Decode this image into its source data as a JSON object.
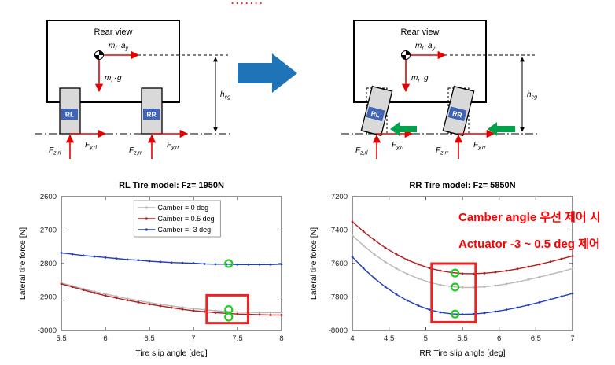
{
  "top_marker": {
    "text": "·······",
    "color": "#ff0000"
  },
  "annotation": {
    "line1": "Camber angle 우선 제어 시",
    "line2": "Actuator -3 ~ 0.5 deg 제어",
    "color": "#ff0000"
  },
  "rear_view": {
    "title": "Rear view",
    "wheel_rl": "RL",
    "wheel_rr": "RR",
    "m1": {
      "a": "m",
      "b": "r",
      "c": "·",
      "d": "a",
      "e": "y"
    },
    "m2": {
      "a": "m",
      "b": "r",
      "c": "·",
      "d": "g"
    },
    "h": {
      "a": "h",
      "b": "cg"
    },
    "f_z_rl": {
      "a": "F",
      "b": "z,rl"
    },
    "f_y_rl": {
      "a": "F",
      "b": "y,rl"
    },
    "f_z_rr": {
      "a": "F",
      "b": "z,rr"
    },
    "f_y_rr": {
      "a": "F",
      "b": "y,rr"
    }
  },
  "colors": {
    "force_red": "#e60000",
    "big_arrow_blue": "#1f74b8",
    "actuator_green": "#00a14b",
    "wheel_badge_blue": "#3f63b5",
    "highlight_green": "#22cc22",
    "highlight_box_red": "#ee2222",
    "annotation_red": "#ff0000"
  },
  "chart_data": [
    {
      "type": "line",
      "title": "RL Tire model: Fz= 1950N",
      "xlabel": "Tire slip angle [deg]",
      "ylabel": "Lateral tire force [N]",
      "xlim": [
        5.5,
        8
      ],
      "ylim": [
        -3000,
        -2600
      ],
      "xticks": [
        5.5,
        6,
        6.5,
        7,
        7.5,
        8
      ],
      "yticks": [
        -3000,
        -2900,
        -2800,
        -2700,
        -2600
      ],
      "grid": false,
      "legend": {
        "position": "top-center",
        "items": [
          "Camber =  0 deg",
          "Camber = 0.5 deg",
          "Camber = -3 deg"
        ]
      },
      "x": [
        5.5,
        5.625,
        5.75,
        5.875,
        6,
        6.125,
        6.25,
        6.375,
        6.5,
        6.625,
        6.75,
        6.875,
        7,
        7.125,
        7.25,
        7.375,
        7.5,
        7.625,
        7.75,
        7.875,
        8
      ],
      "series": [
        {
          "name": "Camber =  0 deg",
          "color": "#b8b8b8",
          "values": [
            -2858,
            -2867,
            -2876,
            -2884,
            -2891,
            -2898,
            -2905,
            -2911,
            -2917,
            -2922,
            -2927,
            -2931,
            -2935,
            -2938,
            -2941,
            -2943,
            -2945,
            -2946,
            -2947,
            -2947,
            -2947
          ]
        },
        {
          "name": "Camber = 0.5 deg",
          "color": "#b02020",
          "values": [
            -2861,
            -2870,
            -2879,
            -2888,
            -2896,
            -2903,
            -2910,
            -2916,
            -2922,
            -2927,
            -2932,
            -2937,
            -2941,
            -2944,
            -2947,
            -2949,
            -2951,
            -2952,
            -2953,
            -2954,
            -2954
          ]
        },
        {
          "name": "Camber = -3 deg",
          "color": "#2040b8",
          "values": [
            -2768,
            -2772,
            -2776,
            -2779,
            -2782,
            -2785,
            -2788,
            -2790,
            -2793,
            -2795,
            -2797,
            -2798,
            -2799,
            -2801,
            -2802,
            -2802,
            -2803,
            -2803,
            -2803,
            -2803,
            -2802
          ]
        }
      ],
      "highlight_circles": [
        {
          "x": 7.4,
          "y": -2800
        },
        {
          "x": 7.4,
          "y": -2938
        },
        {
          "x": 7.4,
          "y": -2960
        }
      ],
      "highlight_rect": {
        "x1": 7.15,
        "y1": -2895,
        "x2": 7.62,
        "y2": -2978
      },
      "highlight_color": "#22cc22",
      "rect_color": "#ee2222"
    },
    {
      "type": "line",
      "title": "RR Tire model: Fz= 5850N",
      "xlabel": "RR Tire slip angle [deg]",
      "ylabel": "Lateral tire force [N]",
      "xlim": [
        4,
        7
      ],
      "ylim": [
        -8000,
        -7200
      ],
      "xticks": [
        4,
        4.5,
        5,
        5.5,
        6,
        6.5,
        7
      ],
      "yticks": [
        -8000,
        -7800,
        -7600,
        -7400,
        -7200
      ],
      "grid": false,
      "legend": null,
      "x": [
        4,
        4.15,
        4.3,
        4.45,
        4.6,
        4.75,
        4.9,
        5.05,
        5.2,
        5.35,
        5.5,
        5.65,
        5.8,
        5.95,
        6.1,
        6.25,
        6.4,
        6.55,
        6.7,
        6.85,
        7
      ],
      "series": [
        {
          "name": "Camber = 0.5 deg",
          "color": "#b02020",
          "values": [
            -7350,
            -7408,
            -7460,
            -7506,
            -7545,
            -7578,
            -7605,
            -7627,
            -7643,
            -7654,
            -7660,
            -7661,
            -7658,
            -7652,
            -7643,
            -7632,
            -7619,
            -7605,
            -7589,
            -7572,
            -7555
          ]
        },
        {
          "name": "Camber =  0 deg",
          "color": "#b8b8b8",
          "values": [
            -7432,
            -7492,
            -7545,
            -7591,
            -7630,
            -7663,
            -7690,
            -7712,
            -7728,
            -7738,
            -7743,
            -7743,
            -7739,
            -7732,
            -7722,
            -7710,
            -7696,
            -7681,
            -7665,
            -7648,
            -7630
          ]
        },
        {
          "name": "Camber = -3 deg",
          "color": "#2040b8",
          "values": [
            -7560,
            -7628,
            -7688,
            -7740,
            -7785,
            -7822,
            -7852,
            -7876,
            -7892,
            -7901,
            -7904,
            -7902,
            -7896,
            -7887,
            -7876,
            -7863,
            -7848,
            -7832,
            -7815,
            -7797,
            -7779
          ]
        }
      ],
      "highlight_circles": [
        {
          "x": 5.4,
          "y": -7657
        },
        {
          "x": 5.4,
          "y": -7741
        },
        {
          "x": 5.4,
          "y": -7902
        }
      ],
      "highlight_rect": {
        "x1": 5.08,
        "y1": -7600,
        "x2": 5.68,
        "y2": -7950
      },
      "highlight_color": "#22cc22",
      "rect_color": "#ee2222"
    }
  ]
}
